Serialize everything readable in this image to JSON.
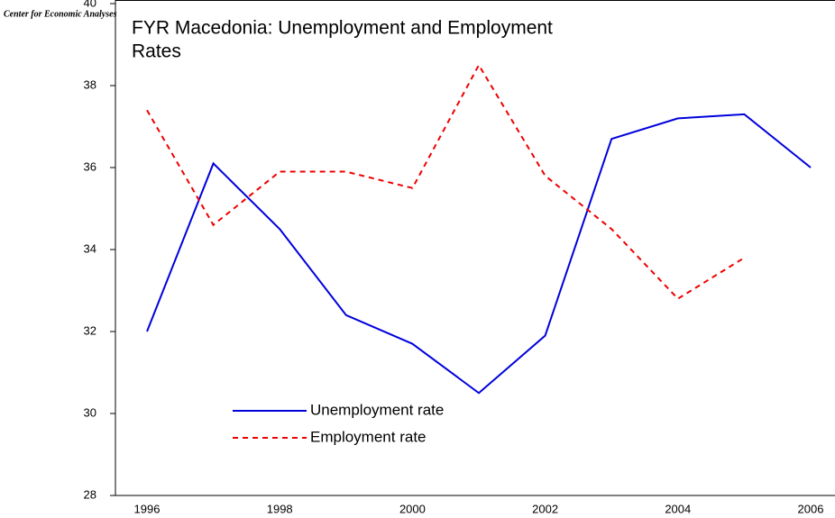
{
  "chart_data": {
    "type": "line",
    "title_lines": [
      "FYR Macedonia: Unemployment and Employment",
      "Rates"
    ],
    "logo": "Center for Economic Analyses",
    "categories": [
      "1996",
      null,
      "1998",
      null,
      "2000",
      null,
      "2002",
      null,
      "2004",
      null,
      "2006"
    ],
    "series": [
      {
        "name": "Unemployment rate",
        "color": "#0000dd",
        "dash": false,
        "values": [
          32.0,
          36.1,
          34.5,
          32.4,
          31.7,
          30.5,
          31.9,
          36.7,
          37.2,
          37.3,
          36.0
        ]
      },
      {
        "name": "Employment rate",
        "color": "#ee0000",
        "dash": true,
        "values": [
          37.4,
          34.6,
          35.9,
          35.9,
          35.5,
          38.5,
          35.8,
          34.5,
          32.8,
          33.8,
          null
        ]
      }
    ],
    "ylim": [
      28,
      40
    ],
    "yticks": [
      28,
      30,
      32,
      34,
      36,
      38,
      40
    ]
  }
}
